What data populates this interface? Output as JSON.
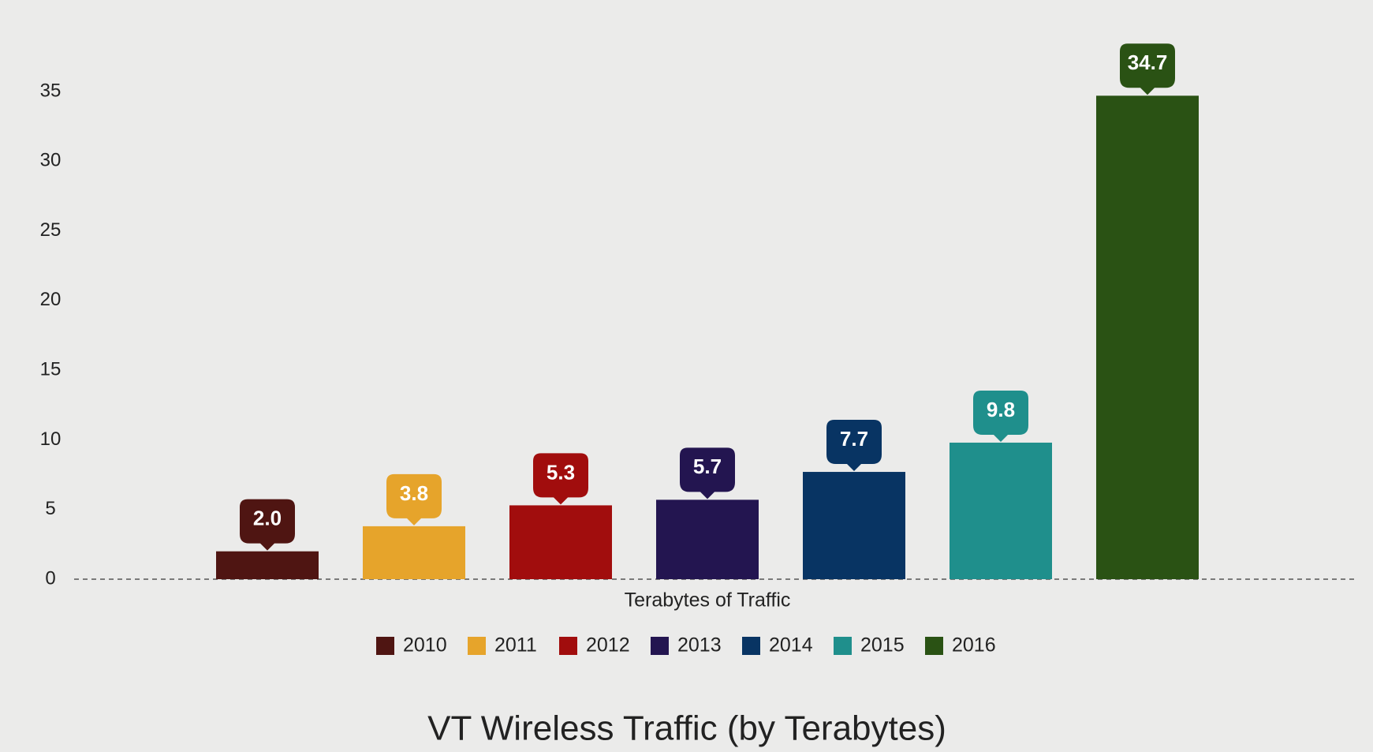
{
  "chart_data": {
    "type": "bar",
    "title": "VT Wireless Traffic (by Terabytes)",
    "categories": [
      "Terabytes of Traffic"
    ],
    "series": [
      {
        "name": "2010",
        "color": "#4f1512",
        "values": [
          2.0
        ],
        "value_labels": [
          "2.0"
        ]
      },
      {
        "name": "2011",
        "color": "#e6a42b",
        "values": [
          3.8
        ]
      },
      {
        "name": "2012",
        "color": "#a10d0d",
        "values": [
          5.3
        ]
      },
      {
        "name": "2013",
        "color": "#231550",
        "values": [
          5.7
        ]
      },
      {
        "name": "2014",
        "color": "#083463",
        "values": [
          7.7
        ]
      },
      {
        "name": "2015",
        "color": "#1f8f8c",
        "values": [
          9.8
        ]
      },
      {
        "name": "2016",
        "color": "#2a5214",
        "values": [
          34.7
        ]
      }
    ],
    "ylim": [
      0,
      35
    ],
    "yticks": [
      0,
      5,
      10,
      15,
      20,
      25,
      30,
      35
    ],
    "grid": false
  }
}
